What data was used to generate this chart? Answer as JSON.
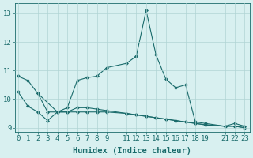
{
  "line1_x": [
    0,
    1,
    2,
    4,
    5,
    6,
    7,
    8,
    9,
    11,
    12,
    13,
    14,
    15,
    16,
    17,
    18,
    19,
    21,
    22,
    23
  ],
  "line1_y": [
    10.8,
    10.65,
    10.2,
    9.55,
    9.7,
    10.65,
    10.75,
    10.8,
    11.1,
    11.25,
    11.5,
    13.1,
    11.55,
    10.7,
    10.4,
    10.5,
    9.2,
    9.15,
    9.05,
    9.15,
    9.05
  ],
  "line2_x": [
    0,
    1,
    2,
    3,
    4,
    5,
    6,
    7,
    8,
    9,
    11,
    12,
    13,
    14,
    15,
    16,
    17,
    18,
    19,
    21,
    22,
    23
  ],
  "line2_y": [
    10.25,
    9.75,
    9.55,
    9.25,
    9.55,
    9.55,
    9.7,
    9.7,
    9.65,
    9.6,
    9.5,
    9.45,
    9.4,
    9.35,
    9.3,
    9.25,
    9.2,
    9.15,
    9.1,
    9.05,
    9.05,
    9.0
  ],
  "line3_x": [
    2,
    3,
    4,
    5,
    6,
    7,
    8,
    9,
    11,
    12,
    13,
    14,
    15,
    16,
    17,
    18,
    19,
    21,
    22,
    23
  ],
  "line3_y": [
    10.2,
    9.55,
    9.55,
    9.55,
    9.55,
    9.55,
    9.55,
    9.55,
    9.5,
    9.45,
    9.4,
    9.35,
    9.3,
    9.25,
    9.2,
    9.15,
    9.1,
    9.05,
    9.05,
    9.0
  ],
  "xticks": [
    0,
    1,
    2,
    3,
    4,
    5,
    6,
    7,
    8,
    9,
    11,
    12,
    13,
    14,
    15,
    16,
    17,
    18,
    19,
    21,
    22,
    23
  ],
  "yticks": [
    9,
    10,
    11,
    12,
    13
  ],
  "xlim": [
    -0.3,
    23.5
  ],
  "ylim": [
    8.85,
    13.35
  ],
  "xlabel": "Humidex (Indice chaleur)",
  "line_color": "#1a6b6b",
  "bg_color": "#d8f0f0",
  "grid_color": "#b0d4d4",
  "xlabel_fontsize": 7.5,
  "tick_fontsize": 6.5
}
